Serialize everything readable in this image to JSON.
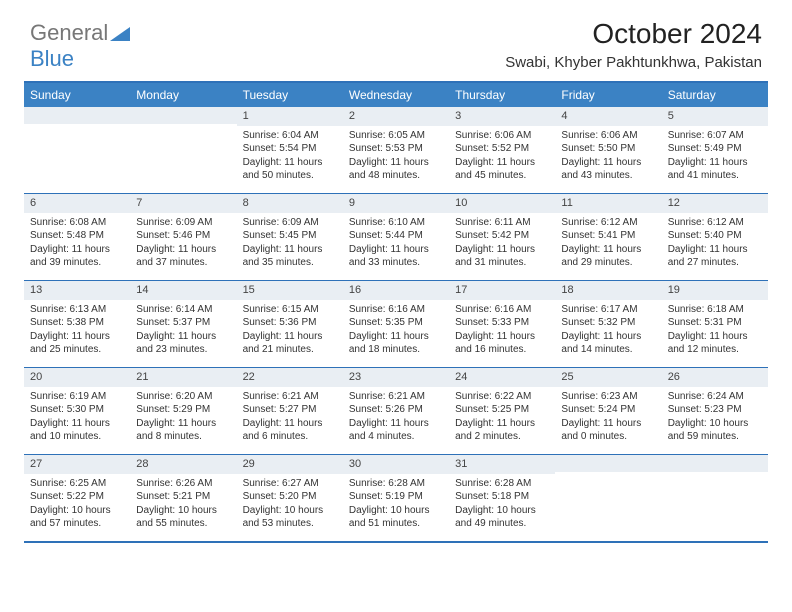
{
  "brand": {
    "part1": "General",
    "part2": "Blue"
  },
  "title": "October 2024",
  "location": "Swabi, Khyber Pakhtunkhwa, Pakistan",
  "colors": {
    "header_bg": "#3b82c4",
    "border": "#2e71b8",
    "daynum_bg": "#e9eef3",
    "text": "#333333",
    "white": "#ffffff"
  },
  "day_headers": [
    "Sunday",
    "Monday",
    "Tuesday",
    "Wednesday",
    "Thursday",
    "Friday",
    "Saturday"
  ],
  "weeks": [
    [
      null,
      null,
      {
        "n": "1",
        "sr": "6:04 AM",
        "ss": "5:54 PM",
        "dl": "11 hours and 50 minutes."
      },
      {
        "n": "2",
        "sr": "6:05 AM",
        "ss": "5:53 PM",
        "dl": "11 hours and 48 minutes."
      },
      {
        "n": "3",
        "sr": "6:06 AM",
        "ss": "5:52 PM",
        "dl": "11 hours and 45 minutes."
      },
      {
        "n": "4",
        "sr": "6:06 AM",
        "ss": "5:50 PM",
        "dl": "11 hours and 43 minutes."
      },
      {
        "n": "5",
        "sr": "6:07 AM",
        "ss": "5:49 PM",
        "dl": "11 hours and 41 minutes."
      }
    ],
    [
      {
        "n": "6",
        "sr": "6:08 AM",
        "ss": "5:48 PM",
        "dl": "11 hours and 39 minutes."
      },
      {
        "n": "7",
        "sr": "6:09 AM",
        "ss": "5:46 PM",
        "dl": "11 hours and 37 minutes."
      },
      {
        "n": "8",
        "sr": "6:09 AM",
        "ss": "5:45 PM",
        "dl": "11 hours and 35 minutes."
      },
      {
        "n": "9",
        "sr": "6:10 AM",
        "ss": "5:44 PM",
        "dl": "11 hours and 33 minutes."
      },
      {
        "n": "10",
        "sr": "6:11 AM",
        "ss": "5:42 PM",
        "dl": "11 hours and 31 minutes."
      },
      {
        "n": "11",
        "sr": "6:12 AM",
        "ss": "5:41 PM",
        "dl": "11 hours and 29 minutes."
      },
      {
        "n": "12",
        "sr": "6:12 AM",
        "ss": "5:40 PM",
        "dl": "11 hours and 27 minutes."
      }
    ],
    [
      {
        "n": "13",
        "sr": "6:13 AM",
        "ss": "5:38 PM",
        "dl": "11 hours and 25 minutes."
      },
      {
        "n": "14",
        "sr": "6:14 AM",
        "ss": "5:37 PM",
        "dl": "11 hours and 23 minutes."
      },
      {
        "n": "15",
        "sr": "6:15 AM",
        "ss": "5:36 PM",
        "dl": "11 hours and 21 minutes."
      },
      {
        "n": "16",
        "sr": "6:16 AM",
        "ss": "5:35 PM",
        "dl": "11 hours and 18 minutes."
      },
      {
        "n": "17",
        "sr": "6:16 AM",
        "ss": "5:33 PM",
        "dl": "11 hours and 16 minutes."
      },
      {
        "n": "18",
        "sr": "6:17 AM",
        "ss": "5:32 PM",
        "dl": "11 hours and 14 minutes."
      },
      {
        "n": "19",
        "sr": "6:18 AM",
        "ss": "5:31 PM",
        "dl": "11 hours and 12 minutes."
      }
    ],
    [
      {
        "n": "20",
        "sr": "6:19 AM",
        "ss": "5:30 PM",
        "dl": "11 hours and 10 minutes."
      },
      {
        "n": "21",
        "sr": "6:20 AM",
        "ss": "5:29 PM",
        "dl": "11 hours and 8 minutes."
      },
      {
        "n": "22",
        "sr": "6:21 AM",
        "ss": "5:27 PM",
        "dl": "11 hours and 6 minutes."
      },
      {
        "n": "23",
        "sr": "6:21 AM",
        "ss": "5:26 PM",
        "dl": "11 hours and 4 minutes."
      },
      {
        "n": "24",
        "sr": "6:22 AM",
        "ss": "5:25 PM",
        "dl": "11 hours and 2 minutes."
      },
      {
        "n": "25",
        "sr": "6:23 AM",
        "ss": "5:24 PM",
        "dl": "11 hours and 0 minutes."
      },
      {
        "n": "26",
        "sr": "6:24 AM",
        "ss": "5:23 PM",
        "dl": "10 hours and 59 minutes."
      }
    ],
    [
      {
        "n": "27",
        "sr": "6:25 AM",
        "ss": "5:22 PM",
        "dl": "10 hours and 57 minutes."
      },
      {
        "n": "28",
        "sr": "6:26 AM",
        "ss": "5:21 PM",
        "dl": "10 hours and 55 minutes."
      },
      {
        "n": "29",
        "sr": "6:27 AM",
        "ss": "5:20 PM",
        "dl": "10 hours and 53 minutes."
      },
      {
        "n": "30",
        "sr": "6:28 AM",
        "ss": "5:19 PM",
        "dl": "10 hours and 51 minutes."
      },
      {
        "n": "31",
        "sr": "6:28 AM",
        "ss": "5:18 PM",
        "dl": "10 hours and 49 minutes."
      },
      null,
      null
    ]
  ],
  "labels": {
    "sunrise": "Sunrise:",
    "sunset": "Sunset:",
    "daylight": "Daylight:"
  }
}
